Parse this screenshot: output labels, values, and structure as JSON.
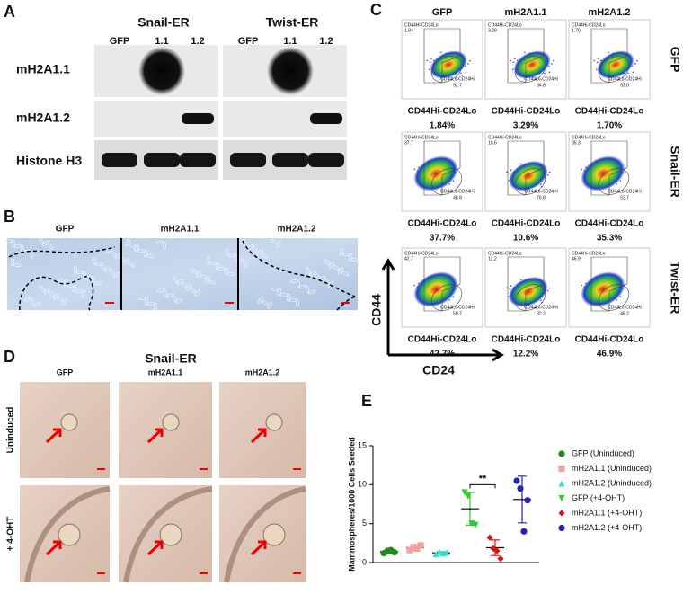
{
  "panel_labels": [
    "A",
    "B",
    "C",
    "D",
    "E"
  ],
  "panel_a": {
    "groups": [
      {
        "name": "Snail-ER",
        "lanes": [
          "GFP",
          "1.1",
          "1.2"
        ]
      },
      {
        "name": "Twist-ER",
        "lanes": [
          "GFP",
          "1.1",
          "1.2"
        ]
      }
    ],
    "rows": [
      "mH2A1.1",
      "mH2A1.2",
      "Histone H3"
    ]
  },
  "panel_b": {
    "columns": [
      "GFP",
      "mH2A1.1",
      "mH2A1.2"
    ]
  },
  "panel_c": {
    "columns": [
      "GFP",
      "mH2A1.1",
      "mH2A1.2"
    ],
    "rows": [
      "GFP",
      "Snail-ER",
      "Twist-ER"
    ],
    "y_axis": "CD44",
    "x_axis": "CD24",
    "plots": [
      [
        {
          "hi_label": "CD44Hi-CD24Lo",
          "hi_value": "1.84",
          "lo_label": "CD44Lo-CD24Hi",
          "lo_value": "92.7",
          "caption": "CD44Hi-CD24Lo",
          "percent": "1.84%"
        },
        {
          "hi_label": "CD44Hi-CD24Lo",
          "hi_value": "3.29",
          "lo_label": "CD44Lo-CD24Hi",
          "lo_value": "84.8",
          "caption": "CD44Hi-CD24Lo",
          "percent": "3.29%"
        },
        {
          "hi_label": "CD44Hi-CD24Lo",
          "hi_value": "1.70",
          "lo_label": "CD44Lo-CD24Hi",
          "lo_value": "92.0",
          "caption": "CD44Hi-CD24Lo",
          "percent": "1.70%"
        }
      ],
      [
        {
          "hi_label": "CD44Hi-CD24Lo",
          "hi_value": "37.7",
          "lo_label": "CD44Lo-CD24Hi",
          "lo_value": "48.8",
          "caption": "CD44Hi-CD24Lo",
          "percent": "37.7%"
        },
        {
          "hi_label": "CD44Hi-CD24Lo",
          "hi_value": "10.6",
          "lo_label": "CD44Lo-CD24Hi",
          "lo_value": "76.8",
          "caption": "CD44Hi-CD24Lo",
          "percent": "10.6%"
        },
        {
          "hi_label": "CD44Hi-CD24Lo",
          "hi_value": "35.3",
          "lo_label": "CD44Lo-CD24Hi",
          "lo_value": "52.7",
          "caption": "CD44Hi-CD24Lo",
          "percent": "35.3%"
        }
      ],
      [
        {
          "hi_label": "CD44Hi-CD24Lo",
          "hi_value": "42.7",
          "lo_label": "CD44Lo-CD24Hi",
          "lo_value": "50.7",
          "caption": "CD44Hi-CD24Lo",
          "percent": "42.7%"
        },
        {
          "hi_label": "CD44Hi-CD24Lo",
          "hi_value": "12.2",
          "lo_label": "CD44Lo-CD24Hi",
          "lo_value": "82.2",
          "caption": "CD44Hi-CD24Lo",
          "percent": "12.2%"
        },
        {
          "hi_label": "CD44Hi-CD24Lo",
          "hi_value": "46.9",
          "lo_label": "CD44Lo-CD24Hi",
          "lo_value": "46.2",
          "caption": "CD44Hi-CD24Lo",
          "percent": "46.9%"
        }
      ]
    ]
  },
  "panel_d": {
    "title": "Snail-ER",
    "columns": [
      "GFP",
      "mH2A1.1",
      "mH2A1.2"
    ],
    "rows": [
      "Uninduced",
      "+ 4-OHT"
    ]
  },
  "chart_data": {
    "type": "scatter",
    "ylabel": "Mammospheres/1000 Cells Seeded",
    "ylim": [
      0,
      15
    ],
    "yticks": [
      0,
      5,
      10,
      15
    ],
    "annotation": "**",
    "series": [
      {
        "name": "GFP (Uninduced)",
        "color": "#1e8c1e",
        "marker": "circle",
        "values": [
          1.2,
          1.5,
          1.6,
          1.3
        ],
        "mean": 1.4,
        "sd": 0.2
      },
      {
        "name": "mH2A1.1 (Uninduced)",
        "color": "#f2a0a0",
        "marker": "square",
        "values": [
          1.6,
          2.0,
          1.8,
          2.2
        ],
        "mean": 1.9,
        "sd": 0.3
      },
      {
        "name": "mH2A1.2 (Uninduced)",
        "color": "#3ee0cc",
        "marker": "triangle-up",
        "values": [
          1.1,
          1.4,
          1.2,
          1.3
        ],
        "mean": 1.25,
        "sd": 0.15
      },
      {
        "name": "GFP (+4-OHT)",
        "color": "#2ecc2e",
        "marker": "triangle-down",
        "values": [
          9,
          8.5,
          5,
          4.8
        ],
        "mean": 6.9,
        "sd": 2.1
      },
      {
        "name": "mH2A1.1 (+4-OHT)",
        "color": "#e01010",
        "marker": "diamond",
        "values": [
          3.2,
          1.8,
          1.5,
          0.5
        ],
        "mean": 1.9,
        "sd": 1.0
      },
      {
        "name": "mH2A1.2 (+4-OHT)",
        "color": "#2323b8",
        "marker": "circle",
        "values": [
          10.5,
          9.5,
          4,
          8
        ],
        "mean": 8.1,
        "sd": 3.0
      }
    ]
  }
}
